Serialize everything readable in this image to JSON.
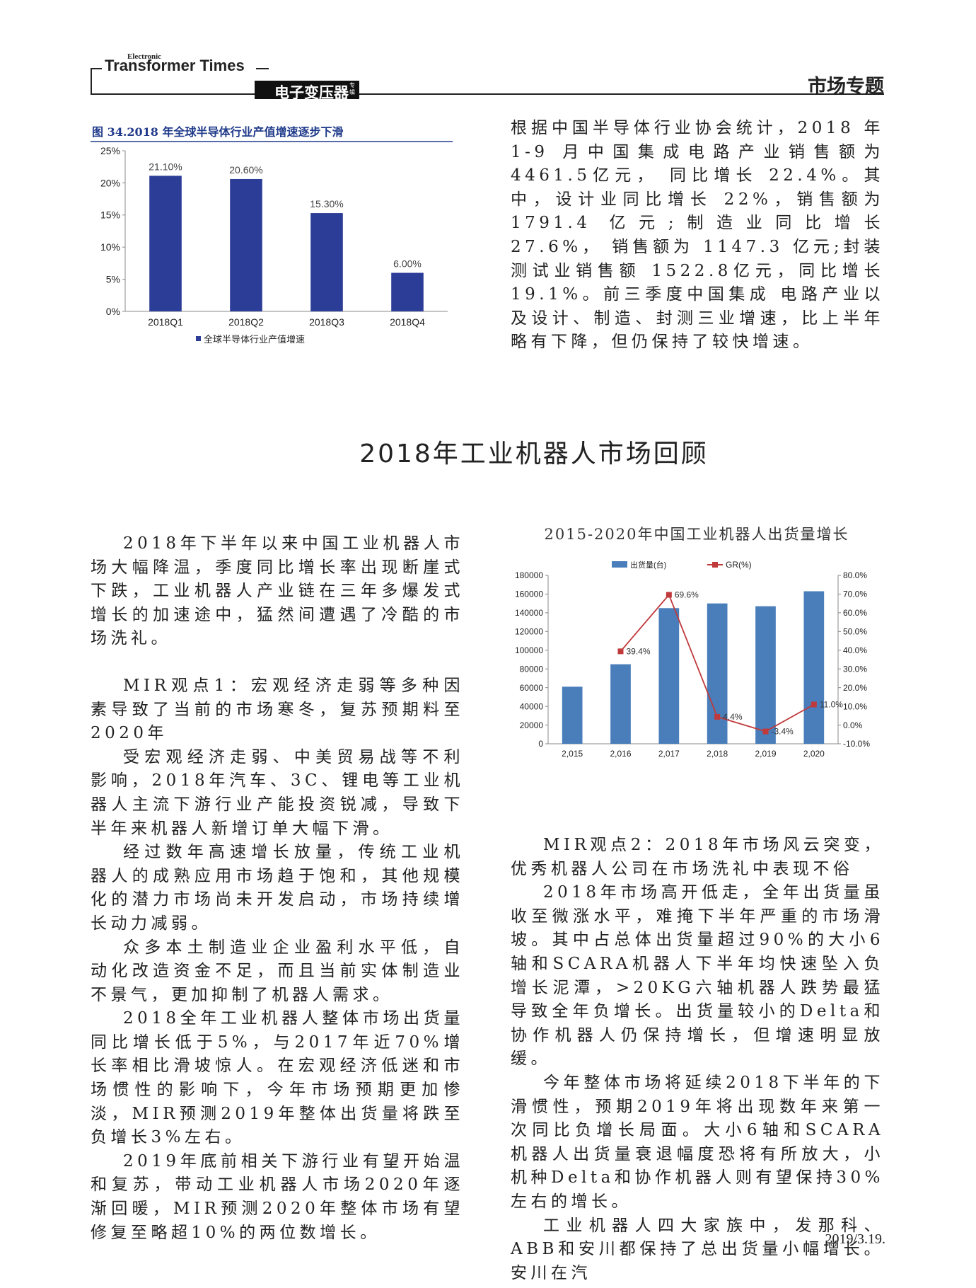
{
  "header": {
    "brand_small": "Electronic",
    "brand": "Transformer Times",
    "brand_cn": "电子变压器",
    "brand_cn_small": "专辑",
    "section": "市场专题"
  },
  "intro_paragraph": "根据中国半导体行业协会统计，2018 年1-9 月中国集成电路产业销售额为 4461.5亿元， 同比增长 22.4%。其中，设计业同比增长 22%，销售额为 1791.4 亿元;制造业同比增长 27.6%， 销售额为 1147.3 亿元;封装测试业销售额 1522.8亿元，同比增长19.1%。前三季度中国集成 电路产业以及设计、制造、封测三业增速，比上半年略有下降，但仍保持了较快增速。",
  "article_title": "2018年工业机器人市场回顾",
  "left_column": [
    {
      "kind": "p",
      "text": "2018年下半年以来中国工业机器人市场大幅降温，季度同比增长率出现断崖式下跌，工业机器人产业链在三年多爆发式增长的加速途中，猛然间遭遇了冷酷的市场洗礼。"
    },
    {
      "kind": "h",
      "text": "MIR观点1：宏观经济走弱等多种因素导致了当前的市场寒冬，复苏预期料至2020年"
    },
    {
      "kind": "p",
      "text": "受宏观经济走弱、中美贸易战等不利影响，2018年汽车、3C、锂电等工业机器人主流下游行业产能投资锐减，导致下半年来机器人新增订单大幅下滑。"
    },
    {
      "kind": "p",
      "text": "经过数年高速增长放量，传统工业机器人的成熟应用市场趋于饱和，其他规模化的潜力市场尚未开发启动，市场持续增长动力减弱。"
    },
    {
      "kind": "p",
      "text": "众多本土制造业企业盈利水平低，自动化改造资金不足，而且当前实体制造业不景气，更加抑制了机器人需求。"
    },
    {
      "kind": "p",
      "text": "2018全年工业机器人整体市场出货量同比增长低于5%，与2017年近70%增长率相比滑坡惊人。在宏观经济低迷和市场惯性的影响下，今年市场预期更加惨淡，MIR预测2019年整体出货量将跌至负增长3%左右。"
    },
    {
      "kind": "p",
      "text": "2019年底前相关下游行业有望开始温和复苏，带动工业机器人市场2020年逐渐回暖，MIR预测2020年整体市场有望修复至略超10%的两位数增长。"
    }
  ],
  "right_column": [
    {
      "kind": "h",
      "text": "MIR观点2：2018年市场风云突变，优秀机器人公司在市场洗礼中表现不俗"
    },
    {
      "kind": "p",
      "text": "2018年市场高开低走，全年出货量虽收至微涨水平，难掩下半年严重的市场滑坡。其中占总体出货量超过90%的大小6轴和SCARA机器人下半年均快速坠入负增长泥潭，>20KG六轴机器人跌势最猛导致全年负增长。出货量较小的Delta和协作机器人仍保持增长，但增速明显放缓。"
    },
    {
      "kind": "p",
      "text": "今年整体市场将延续2018下半年的下滑惯性，预期2019年将出现数年来第一次同比负增长局面。大小6轴和SCARA机器人出货量衰退幅度恐将有所放大，小机种Delta和协作机器人则有望保持30%左右的增长。"
    },
    {
      "kind": "p",
      "text": "工业机器人四大家族中，发那科、ABB和安川都保持了总出货量小幅增长。安川在汽"
    }
  ],
  "footer": {
    "page": "2019/3.19."
  },
  "chart_data": [
    {
      "type": "bar",
      "title": "图 34.2018 年全球半导体行业产值增速逐步下滑",
      "categories": [
        "2018Q1",
        "2018Q2",
        "2018Q3",
        "2018Q4"
      ],
      "series": [
        {
          "name": "全球半导体行业产值增速",
          "color": "#2b3d96",
          "values": [
            21.1,
            20.6,
            15.3,
            6.0
          ],
          "value_labels": [
            "21.10%",
            "20.60%",
            "15.30%",
            "6.00%"
          ]
        }
      ],
      "ylim": [
        0,
        25
      ],
      "yticks": [
        {
          "value": 0,
          "label": "0%"
        },
        {
          "value": 5,
          "label": "5%"
        },
        {
          "value": 10,
          "label": "10%"
        },
        {
          "value": 15,
          "label": "15%"
        },
        {
          "value": 20,
          "label": "20%"
        },
        {
          "value": 25,
          "label": "25%"
        }
      ],
      "legend": "bottom",
      "grid": false
    },
    {
      "type": "combo",
      "title": "2015-2020年中国工业机器人出货量增长",
      "categories": [
        "2,015",
        "2,016",
        "2,017",
        "2,018",
        "2,019",
        "2,020"
      ],
      "series": [
        {
          "name": "出货量(台)",
          "color": "#4a7ebb",
          "values": [
            61000,
            85000,
            145000,
            150000,
            147000,
            163000
          ]
        },
        {
          "name": "GR(%)",
          "color": "#c0393b",
          "axis": "y2",
          "values": [
            null,
            39.4,
            69.6,
            4.4,
            -3.4,
            11.0
          ],
          "value_labels": [
            null,
            "39.4%",
            "69.6%",
            "4.4%",
            "-3.4%",
            "11.0%"
          ]
        }
      ],
      "ylim": [
        0,
        180000
      ],
      "yticks": [
        0,
        20000,
        40000,
        60000,
        80000,
        100000,
        120000,
        140000,
        160000,
        180000
      ],
      "y2lim": [
        -10,
        80
      ],
      "y2ticks": [
        {
          "value": -10,
          "label": "-10.0%"
        },
        {
          "value": 0,
          "label": "0.0%"
        },
        {
          "value": 10,
          "label": "10.0%"
        },
        {
          "value": 20,
          "label": "20.0%"
        },
        {
          "value": 30,
          "label": "30.0%"
        },
        {
          "value": 40,
          "label": "40.0%"
        },
        {
          "value": 50,
          "label": "50.0%"
        },
        {
          "value": 60,
          "label": "60.0%"
        },
        {
          "value": 70,
          "label": "70.0%"
        },
        {
          "value": 80,
          "label": "80.0%"
        }
      ],
      "legend": "top",
      "grid": false
    }
  ]
}
